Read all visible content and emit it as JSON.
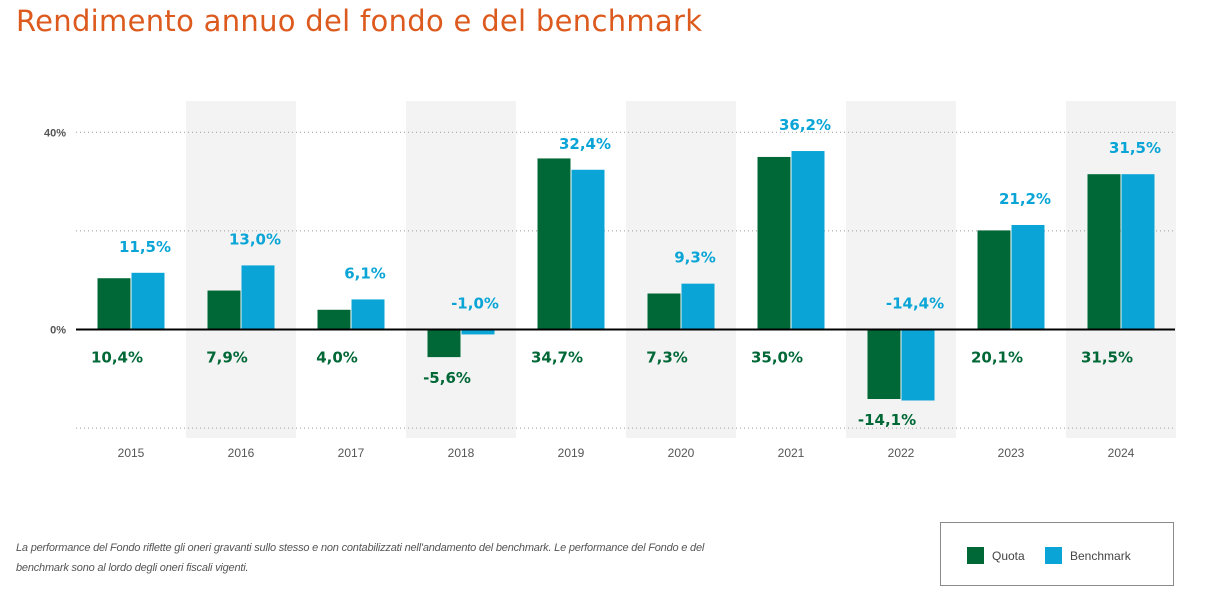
{
  "title": "Rendimento annuo del fondo e del benchmark",
  "note": "La performance del Fondo riflette gli oneri gravanti sullo stesso e non contabilizzati nell'andamento del benchmark. Le performance del Fondo e del benchmark sono al lordo degli oneri fiscali vigenti.",
  "colors": {
    "title": "#dd5a1e",
    "quota": "#006837",
    "benchmark": "#0aa5d6",
    "band": "#f3f3f3"
  },
  "legend": [
    {
      "name": "Quota",
      "color": "#006837"
    },
    {
      "name": "Benchmark",
      "color": "#0aa5d6"
    }
  ],
  "chart_data": {
    "type": "bar",
    "categories": [
      "2015",
      "2016",
      "2017",
      "2018",
      "2019",
      "2020",
      "2021",
      "2022",
      "2023",
      "2024"
    ],
    "series": [
      {
        "name": "Quota",
        "color": "#006837",
        "values": [
          10.4,
          7.9,
          4.0,
          -5.6,
          34.7,
          7.3,
          35.0,
          -14.1,
          20.1,
          31.5
        ],
        "labels": [
          "10,4%",
          "7,9%",
          "4,0%",
          "-5,6%",
          "34,7%",
          "7,3%",
          "35,0%",
          "-14,1%",
          "20,1%",
          "31,5%"
        ]
      },
      {
        "name": "Benchmark",
        "color": "#0aa5d6",
        "values": [
          11.5,
          13.0,
          6.1,
          -1.0,
          32.4,
          9.3,
          36.2,
          -14.4,
          21.2,
          31.5
        ],
        "labels": [
          "11,5%",
          "13,0%",
          "6,1%",
          "-1,0%",
          "32,4%",
          "9,3%",
          "36,2%",
          "-14,4%",
          "21,2%",
          "31,5%"
        ]
      }
    ],
    "y_ticks": [
      "40%",
      "0%"
    ],
    "ylim": [
      -20,
      40
    ],
    "grid": true,
    "legend_position": "bottom-right"
  }
}
